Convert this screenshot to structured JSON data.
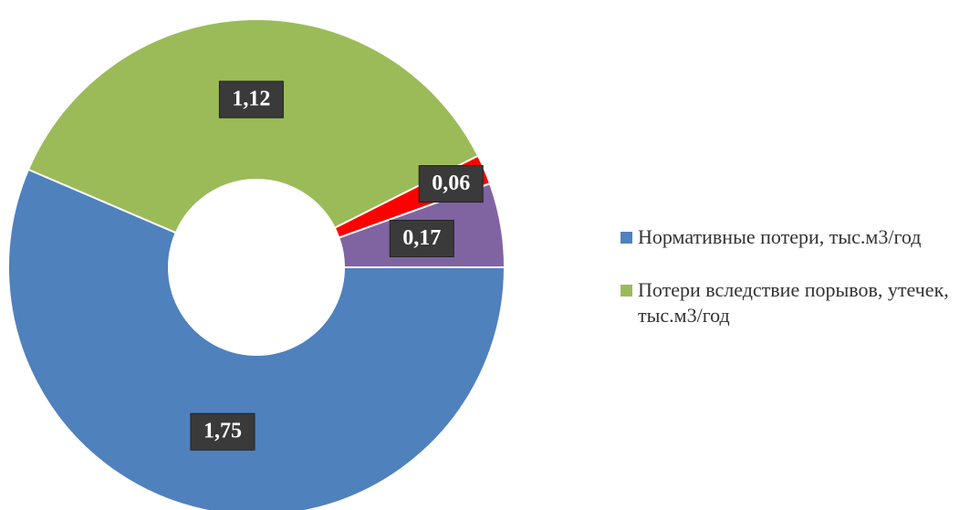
{
  "chart_data": {
    "type": "donut",
    "categories": [
      "Нормативные потери, тыс.м3/год",
      "Потери вследствие порывов, утечек, тыс.м3/год",
      null,
      null
    ],
    "values": [
      1.75,
      1.12,
      0.06,
      0.17
    ],
    "value_labels": [
      "1,75",
      "1,12",
      "0,06",
      "0,17"
    ],
    "colors": [
      "#4f81bd",
      "#9bbb59",
      "#ff0000",
      "#8064a2"
    ],
    "legend": "right"
  }
}
